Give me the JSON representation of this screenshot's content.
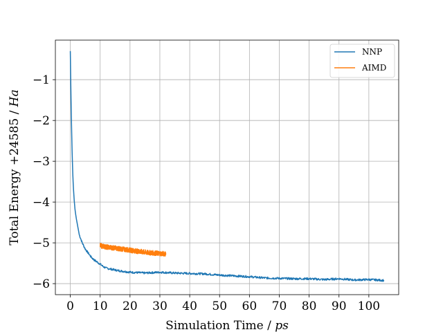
{
  "chart_data": {
    "type": "line",
    "title": "",
    "xlabel": {
      "text": "Simulation Time / ",
      "unit": "ps"
    },
    "ylabel": {
      "text": "Total Energy +24585 / ",
      "unit": "Ha"
    },
    "xlim": [
      -5,
      110
    ],
    "ylim": [
      -6.27,
      -0.03
    ],
    "xticks": [
      0,
      10,
      20,
      30,
      40,
      50,
      60,
      70,
      80,
      90,
      100
    ],
    "yticks": [
      -6,
      -5,
      -4,
      -3,
      -2,
      -1
    ],
    "ytick_labels": [
      "−6",
      "−5",
      "−4",
      "−3",
      "−2",
      "−1"
    ],
    "grid": true,
    "legend_position": "top-right",
    "series": [
      {
        "name": "NNP",
        "color": "#1f77b4",
        "x": [
          0,
          0.2,
          0.4,
          0.6,
          0.8,
          1.0,
          1.3,
          1.6,
          2.0,
          2.5,
          3.0,
          4.0,
          5.0,
          6.0,
          7.0,
          8.0,
          9.0,
          10.0,
          11.0,
          12.0,
          14.0,
          16.0,
          20.0,
          25.0,
          30.0,
          35.0,
          40.0,
          45.0,
          50.0,
          55.0,
          60.0,
          65.0,
          70.0,
          75.0,
          80.0,
          85.0,
          90.0,
          95.0,
          100.0,
          105.0
        ],
        "y": [
          -0.3,
          -1.3,
          -2.1,
          -2.75,
          -3.25,
          -3.6,
          -3.95,
          -4.2,
          -4.4,
          -4.6,
          -4.8,
          -5.0,
          -5.15,
          -5.25,
          -5.35,
          -5.42,
          -5.47,
          -5.52,
          -5.58,
          -5.62,
          -5.65,
          -5.68,
          -5.72,
          -5.74,
          -5.72,
          -5.74,
          -5.75,
          -5.76,
          -5.79,
          -5.81,
          -5.83,
          -5.86,
          -5.87,
          -5.88,
          -5.88,
          -5.9,
          -5.88,
          -5.91,
          -5.9,
          -5.92
        ]
      },
      {
        "name": "AIMD",
        "color": "#ff7f0e",
        "x": [
          10,
          12,
          14,
          16,
          18,
          20,
          22,
          24,
          26,
          28,
          30,
          32
        ],
        "y": [
          -5.07,
          -5.1,
          -5.12,
          -5.14,
          -5.16,
          -5.18,
          -5.2,
          -5.22,
          -5.24,
          -5.25,
          -5.26,
          -5.27
        ],
        "noise_amplitude": 0.06
      }
    ]
  }
}
